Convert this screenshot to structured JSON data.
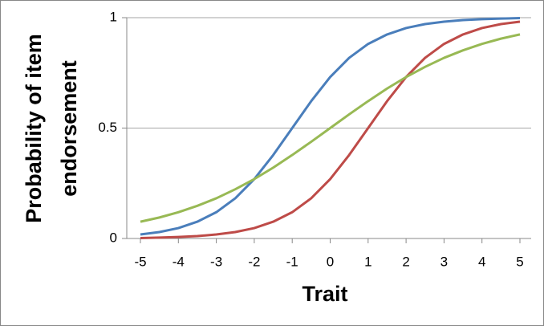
{
  "chart_data": {
    "type": "line",
    "xlabel": "Trait",
    "ylabel": [
      "Probability of item",
      "endorsement"
    ],
    "x": [
      -5,
      -4.5,
      -4,
      -3.5,
      -3,
      -2.5,
      -2,
      -1.5,
      -1,
      -0.5,
      0,
      0.5,
      1,
      1.5,
      2,
      2.5,
      3,
      3.5,
      4,
      4.5,
      5
    ],
    "series": [
      {
        "color": "#4a7ebb",
        "values": [
          0.018,
          0.029,
          0.047,
          0.076,
          0.119,
          0.182,
          0.269,
          0.378,
          0.5,
          0.622,
          0.731,
          0.818,
          0.881,
          0.924,
          0.953,
          0.971,
          0.982,
          0.989,
          0.993,
          0.996,
          0.998
        ]
      },
      {
        "color": "#be4b48",
        "values": [
          0.002,
          0.004,
          0.007,
          0.011,
          0.018,
          0.029,
          0.047,
          0.076,
          0.119,
          0.182,
          0.269,
          0.378,
          0.5,
          0.622,
          0.731,
          0.818,
          0.881,
          0.924,
          0.953,
          0.971,
          0.982
        ]
      },
      {
        "color": "#98b954",
        "values": [
          0.076,
          0.095,
          0.119,
          0.148,
          0.182,
          0.223,
          0.269,
          0.321,
          0.378,
          0.438,
          0.5,
          0.562,
          0.622,
          0.679,
          0.731,
          0.777,
          0.818,
          0.852,
          0.881,
          0.905,
          0.924
        ]
      }
    ],
    "xlim": [
      -5,
      5
    ],
    "xticks": [
      -5,
      -4,
      -3,
      -2,
      -1,
      0,
      1,
      2,
      3,
      4,
      5
    ],
    "ylim": [
      0,
      1
    ],
    "yticks": [
      0,
      0.5,
      1
    ],
    "grid": true
  }
}
